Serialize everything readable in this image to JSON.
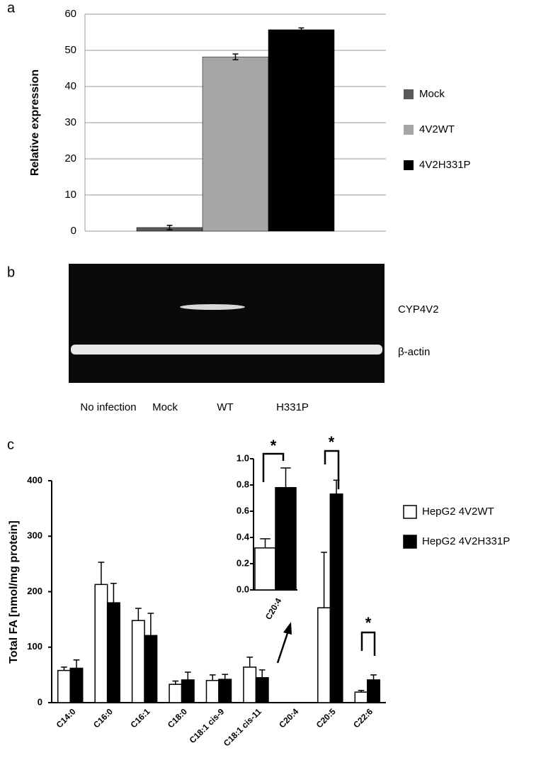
{
  "panel_labels": [
    "a",
    "b",
    "c"
  ],
  "chart_data": [
    {
      "type": "bar",
      "y_label": "Relative expression",
      "categories": [
        null
      ],
      "series": [
        {
          "name": "Mock",
          "color": "#595959",
          "values": [
            1.0
          ],
          "errors": [
            0.6
          ]
        },
        {
          "name": "4V2WT",
          "color": "#a6a6a6",
          "values": [
            48.2
          ],
          "errors": [
            0.8
          ]
        },
        {
          "name": "4V2H331P",
          "color": "#000000",
          "values": [
            55.7
          ],
          "errors": [
            0.5
          ]
        }
      ],
      "ylim": [
        0,
        60
      ],
      "yticks": [
        0,
        10,
        20,
        30,
        40,
        50,
        60
      ],
      "grid": true,
      "legend": "right"
    },
    {
      "type": "bar",
      "y_label": "Total FA [nmol/mg protein]",
      "categories": [
        "C14:0",
        "C16:0",
        "C16:1",
        "C18:0",
        "C18:1 cis-9",
        "C18:1 cis-11",
        "C20:4",
        "C20:5",
        "C22:6"
      ],
      "series": [
        {
          "name": "HepG2 4V2WT",
          "color": "#ffffff",
          "values": [
            58,
            213,
            148,
            33,
            40,
            64,
            null,
            171,
            19
          ],
          "errors": [
            6,
            40,
            22,
            6,
            10,
            18,
            null,
            100,
            3
          ]
        },
        {
          "name": "HepG2 4V2H331P",
          "color": "#000000",
          "values": [
            62,
            180,
            121,
            41,
            42,
            45,
            null,
            376,
            41
          ],
          "errors": [
            15,
            35,
            40,
            14,
            9,
            14,
            null,
            25,
            9
          ]
        }
      ],
      "ylim": [
        0,
        400
      ],
      "yticks": [
        0,
        100,
        200,
        300,
        400
      ],
      "grid": false,
      "legend": "right",
      "annotations": [
        "*",
        "*"
      ]
    },
    {
      "type": "bar",
      "categories": [
        "C20:4"
      ],
      "series": [
        {
          "color": "#ffffff",
          "values": [
            0.32
          ],
          "errors": [
            0.07
          ]
        },
        {
          "color": "#000000",
          "values": [
            0.78
          ],
          "errors": [
            0.15
          ]
        }
      ],
      "ylim": [
        0,
        1
      ],
      "yticks": [
        {
          "value": 0,
          "label": "0.0"
        },
        0.2,
        0.4,
        0.6,
        0.8,
        {
          "value": 1,
          "label": "1.0"
        }
      ],
      "grid": false,
      "annotations": [
        "*"
      ]
    }
  ],
  "blot": {
    "bands": [
      "CYP4V2",
      "β-actin"
    ],
    "lanes": [
      "No infection",
      "Mock",
      "WT",
      "H331P"
    ]
  }
}
